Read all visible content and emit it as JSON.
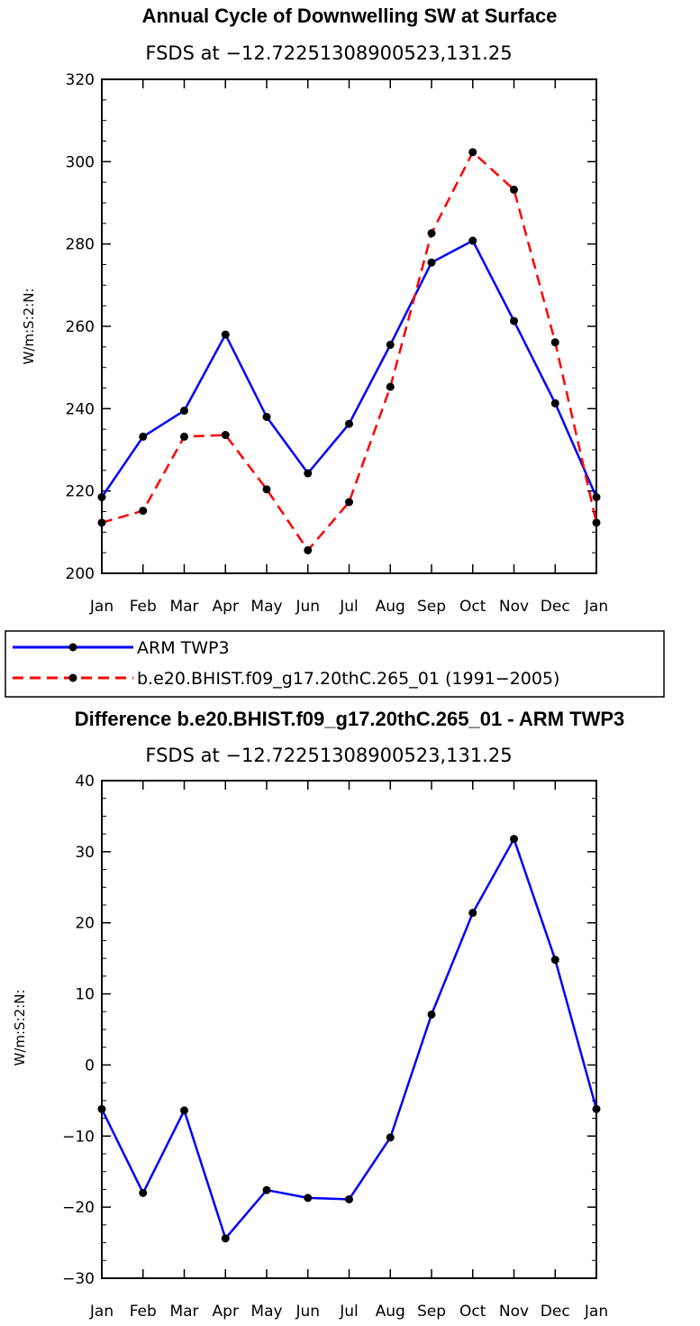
{
  "chart_data": [
    {
      "type": "line",
      "title": "Annual Cycle of Downwelling SW at Surface",
      "subtitle": "FSDS at −12.72251308900523,131.25",
      "ylabel": "W/m:S:2:N:",
      "categories": [
        "Jan",
        "Feb",
        "Mar",
        "Apr",
        "May",
        "Jun",
        "Jul",
        "Aug",
        "Sep",
        "Oct",
        "Nov",
        "Dec",
        "Jan"
      ],
      "ylim": [
        200,
        320
      ],
      "yticks": [
        200,
        220,
        240,
        260,
        280,
        300,
        320
      ],
      "series": [
        {
          "name": "ARM TWP3",
          "color": "#0000ff",
          "dash": "solid",
          "values": [
            218.5,
            233.2,
            239.5,
            258.0,
            238.0,
            224.3,
            236.3,
            255.5,
            275.5,
            280.8,
            261.3,
            241.3,
            218.5
          ]
        },
        {
          "name": "b.e20.BHIST.f09_g17.20thC.265_01 (1991−2005)",
          "color": "#ff0000",
          "dash": "dashed",
          "values": [
            212.3,
            215.2,
            233.2,
            233.6,
            220.4,
            205.6,
            217.3,
            245.3,
            282.6,
            302.3,
            293.2,
            256.1,
            212.3
          ]
        }
      ],
      "legend": "below"
    },
    {
      "type": "line",
      "title": "Difference b.e20.BHIST.f09_g17.20thC.265_01 - ARM TWP3",
      "subtitle": "FSDS at −12.72251308900523,131.25",
      "ylabel": "W/m:S:2:N:",
      "categories": [
        "Jan",
        "Feb",
        "Mar",
        "Apr",
        "May",
        "Jun",
        "Jul",
        "Aug",
        "Sep",
        "Oct",
        "Nov",
        "Dec",
        "Jan"
      ],
      "ylim": [
        -30,
        40
      ],
      "yticks": [
        -30,
        -20,
        -10,
        0,
        10,
        20,
        30,
        40
      ],
      "series": [
        {
          "color": "#0000ff",
          "dash": "solid",
          "values": [
            -6.2,
            -18.0,
            -6.4,
            -24.4,
            -17.6,
            -18.7,
            -18.9,
            -10.2,
            7.1,
            21.4,
            31.8,
            14.8,
            -6.2
          ]
        }
      ]
    }
  ]
}
